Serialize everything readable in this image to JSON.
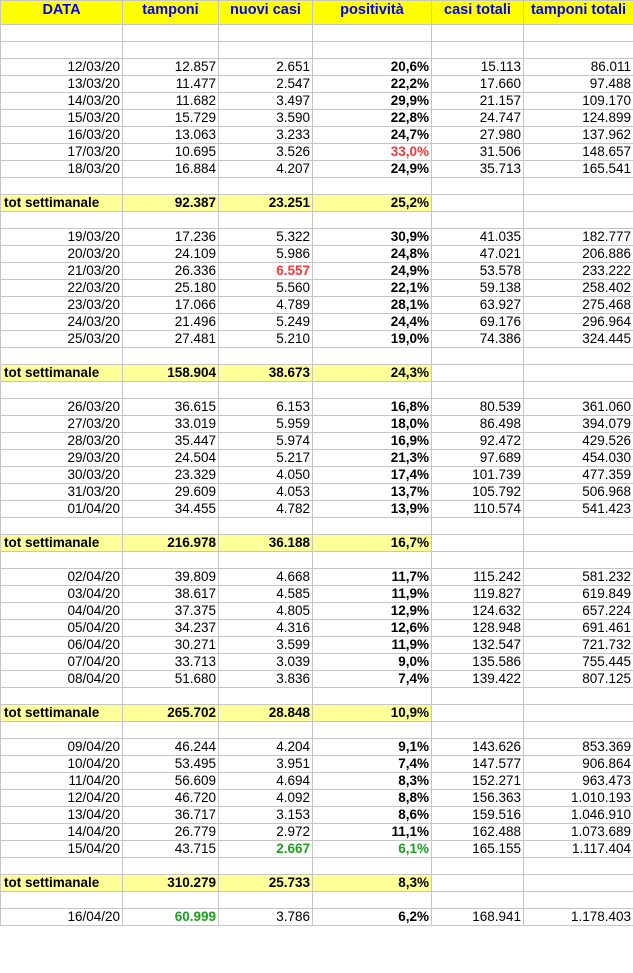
{
  "columns": [
    "DATA",
    "tamponi",
    "nuovi casi",
    "positività",
    "casi totali",
    "tamponi totali"
  ],
  "colors": {
    "header_bg": "#ffff00",
    "header_text": "#0000ff",
    "total_bg": "#ffff99",
    "highlight_red": "#ff3333",
    "highlight_green": "#1aa01a"
  },
  "rows": [
    {
      "type": "blank"
    },
    {
      "type": "blank"
    },
    {
      "type": "day",
      "cells": [
        "12/03/20",
        "12.857",
        "2.651",
        "20,6%",
        "15.113",
        "86.011"
      ]
    },
    {
      "type": "day",
      "cells": [
        "13/03/20",
        "11.477",
        "2.547",
        "22,2%",
        "17.660",
        "97.488"
      ]
    },
    {
      "type": "day",
      "cells": [
        "14/03/20",
        "11.682",
        "3.497",
        "29,9%",
        "21.157",
        "109.170"
      ]
    },
    {
      "type": "day",
      "cells": [
        "15/03/20",
        "15.729",
        "3.590",
        "22,8%",
        "24.747",
        "124.899"
      ]
    },
    {
      "type": "day",
      "cells": [
        "16/03/20",
        "13.063",
        "3.233",
        "24,7%",
        "27.980",
        "137.962"
      ]
    },
    {
      "type": "day",
      "cells": [
        "17/03/20",
        "10.695",
        "3.526",
        "33,0%",
        "31.506",
        "148.657"
      ],
      "hl": {
        "3": "red"
      }
    },
    {
      "type": "day",
      "cells": [
        "18/03/20",
        "16.884",
        "4.207",
        "24,9%",
        "35.713",
        "165.541"
      ]
    },
    {
      "type": "blank"
    },
    {
      "type": "total",
      "cells": [
        "tot settimanale",
        "92.387",
        "23.251",
        "25,2%"
      ]
    },
    {
      "type": "blank"
    },
    {
      "type": "day",
      "cells": [
        "19/03/20",
        "17.236",
        "5.322",
        "30,9%",
        "41.035",
        "182.777"
      ]
    },
    {
      "type": "day",
      "cells": [
        "20/03/20",
        "24.109",
        "5.986",
        "24,8%",
        "47.021",
        "206.886"
      ]
    },
    {
      "type": "day",
      "cells": [
        "21/03/20",
        "26.336",
        "6.557",
        "24,9%",
        "53.578",
        "233.222"
      ],
      "hl": {
        "2": "red"
      }
    },
    {
      "type": "day",
      "cells": [
        "22/03/20",
        "25.180",
        "5.560",
        "22,1%",
        "59.138",
        "258.402"
      ]
    },
    {
      "type": "day",
      "cells": [
        "23/03/20",
        "17.066",
        "4.789",
        "28,1%",
        "63.927",
        "275.468"
      ]
    },
    {
      "type": "day",
      "cells": [
        "24/03/20",
        "21.496",
        "5.249",
        "24,4%",
        "69.176",
        "296.964"
      ]
    },
    {
      "type": "day",
      "cells": [
        "25/03/20",
        "27.481",
        "5.210",
        "19,0%",
        "74.386",
        "324.445"
      ]
    },
    {
      "type": "blank"
    },
    {
      "type": "total",
      "cells": [
        "tot settimanale",
        "158.904",
        "38.673",
        "24,3%"
      ]
    },
    {
      "type": "blank"
    },
    {
      "type": "day",
      "cells": [
        "26/03/20",
        "36.615",
        "6.153",
        "16,8%",
        "80.539",
        "361.060"
      ]
    },
    {
      "type": "day",
      "cells": [
        "27/03/20",
        "33.019",
        "5.959",
        "18,0%",
        "86.498",
        "394.079"
      ]
    },
    {
      "type": "day",
      "cells": [
        "28/03/20",
        "35.447",
        "5.974",
        "16,9%",
        "92.472",
        "429.526"
      ]
    },
    {
      "type": "day",
      "cells": [
        "29/03/20",
        "24.504",
        "5.217",
        "21,3%",
        "97.689",
        "454.030"
      ]
    },
    {
      "type": "day",
      "cells": [
        "30/03/20",
        "23.329",
        "4.050",
        "17,4%",
        "101.739",
        "477.359"
      ]
    },
    {
      "type": "day",
      "cells": [
        "31/03/20",
        "29.609",
        "4.053",
        "13,7%",
        "105.792",
        "506.968"
      ]
    },
    {
      "type": "day",
      "cells": [
        "01/04/20",
        "34.455",
        "4.782",
        "13,9%",
        "110.574",
        "541.423"
      ]
    },
    {
      "type": "blank"
    },
    {
      "type": "total",
      "cells": [
        "tot settimanale",
        "216.978",
        "36.188",
        "16,7%"
      ]
    },
    {
      "type": "blank"
    },
    {
      "type": "day",
      "cells": [
        "02/04/20",
        "39.809",
        "4.668",
        "11,7%",
        "115.242",
        "581.232"
      ]
    },
    {
      "type": "day",
      "cells": [
        "03/04/20",
        "38.617",
        "4.585",
        "11,9%",
        "119.827",
        "619.849"
      ]
    },
    {
      "type": "day",
      "cells": [
        "04/04/20",
        "37.375",
        "4.805",
        "12,9%",
        "124.632",
        "657.224"
      ]
    },
    {
      "type": "day",
      "cells": [
        "05/04/20",
        "34.237",
        "4.316",
        "12,6%",
        "128.948",
        "691.461"
      ]
    },
    {
      "type": "day",
      "cells": [
        "06/04/20",
        "30.271",
        "3.599",
        "11,9%",
        "132.547",
        "721.732"
      ]
    },
    {
      "type": "day",
      "cells": [
        "07/04/20",
        "33.713",
        "3.039",
        "9,0%",
        "135.586",
        "755.445"
      ]
    },
    {
      "type": "day",
      "cells": [
        "08/04/20",
        "51.680",
        "3.836",
        "7,4%",
        "139.422",
        "807.125"
      ]
    },
    {
      "type": "blank"
    },
    {
      "type": "total",
      "cells": [
        "tot settimanale",
        "265.702",
        "28.848",
        "10,9%"
      ]
    },
    {
      "type": "blank"
    },
    {
      "type": "day",
      "cells": [
        "09/04/20",
        "46.244",
        "4.204",
        "9,1%",
        "143.626",
        "853.369"
      ]
    },
    {
      "type": "day",
      "cells": [
        "10/04/20",
        "53.495",
        "3.951",
        "7,4%",
        "147.577",
        "906.864"
      ]
    },
    {
      "type": "day",
      "cells": [
        "11/04/20",
        "56.609",
        "4.694",
        "8,3%",
        "152.271",
        "963.473"
      ]
    },
    {
      "type": "day",
      "cells": [
        "12/04/20",
        "46.720",
        "4.092",
        "8,8%",
        "156.363",
        "1.010.193"
      ]
    },
    {
      "type": "day",
      "cells": [
        "13/04/20",
        "36.717",
        "3.153",
        "8,6%",
        "159.516",
        "1.046.910"
      ]
    },
    {
      "type": "day",
      "cells": [
        "14/04/20",
        "26.779",
        "2.972",
        "11,1%",
        "162.488",
        "1.073.689"
      ]
    },
    {
      "type": "day",
      "cells": [
        "15/04/20",
        "43.715",
        "2.667",
        "6,1%",
        "165.155",
        "1.117.404"
      ],
      "hl": {
        "2": "green",
        "3": "green"
      }
    },
    {
      "type": "blank"
    },
    {
      "type": "total",
      "cells": [
        "tot settimanale",
        "310.279",
        "25.733",
        "8,3%"
      ]
    },
    {
      "type": "blank"
    },
    {
      "type": "day",
      "cells": [
        "16/04/20",
        "60.999",
        "3.786",
        "6,2%",
        "168.941",
        "1.178.403"
      ],
      "hl": {
        "1": "green"
      }
    }
  ]
}
